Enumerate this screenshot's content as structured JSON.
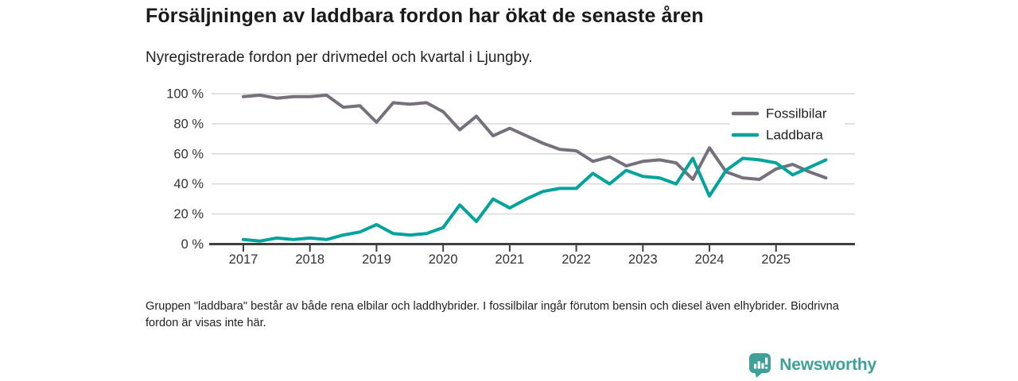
{
  "title": "Försäljningen av laddbara fordon har ökat de senaste åren",
  "subtitle": "Nyregistrerade fordon per drivmedel och kvartal i Ljungby.",
  "footnote": "Gruppen \"laddbara\" består av både rena elbilar och laddhybrider. I fossilbilar ingår förutom bensin och diesel även elhybrider. Biodrivna fordon är visas inte här.",
  "logo": {
    "text": "Newsworthy",
    "color": "#3fa09a"
  },
  "colors": {
    "fossil_line": "#75707b",
    "laddbara_line": "#00a39b",
    "gridline": "#dbdbdb",
    "axis": "#3e3e3e",
    "tick_text": "#333333",
    "legend_text": "#1f1f1f"
  },
  "chart_data": {
    "type": "line",
    "title": "Försäljningen av laddbara fordon har ökat de senaste åren",
    "subtitle": "Nyregistrerade fordon per drivmedel och kvartal i Ljungby.",
    "x_unit": "quarter",
    "x": [
      "2017 Q1",
      "2017 Q2",
      "2017 Q3",
      "2017 Q4",
      "2018 Q1",
      "2018 Q2",
      "2018 Q3",
      "2018 Q4",
      "2019 Q1",
      "2019 Q2",
      "2019 Q3",
      "2019 Q4",
      "2020 Q1",
      "2020 Q2",
      "2020 Q3",
      "2020 Q4",
      "2021 Q1",
      "2021 Q2",
      "2021 Q3",
      "2021 Q4",
      "2022 Q1",
      "2022 Q2",
      "2022 Q3",
      "2022 Q4",
      "2023 Q1",
      "2023 Q2",
      "2023 Q3",
      "2023 Q4",
      "2024 Q1",
      "2024 Q2",
      "2024 Q3",
      "2024 Q4",
      "2025 Q1",
      "2025 Q2",
      "2025 Q3",
      "2025 Q4"
    ],
    "x_tick_labels": [
      "2017",
      "2018",
      "2019",
      "2020",
      "2021",
      "2022",
      "2023",
      "2024",
      "2025"
    ],
    "y_tick_labels": [
      "0 %",
      "20 %",
      "40 %",
      "60 %",
      "80 %",
      "100 %"
    ],
    "ylim": [
      0,
      100
    ],
    "y_unit": "%",
    "grid": "horizontal",
    "legend_position": "top-right",
    "series": [
      {
        "name": "Fossilbilar",
        "color": "#75707b",
        "values": [
          98,
          99,
          97,
          98,
          98,
          99,
          91,
          92,
          81,
          94,
          93,
          94,
          88,
          76,
          85,
          72,
          77,
          72,
          67,
          63,
          62,
          55,
          58,
          52,
          55,
          56,
          54,
          43,
          64,
          48,
          44,
          43,
          50,
          53,
          48,
          44
        ]
      },
      {
        "name": "Laddbara",
        "color": "#00a39b",
        "values": [
          3,
          2,
          4,
          3,
          4,
          3,
          6,
          8,
          13,
          7,
          6,
          7,
          11,
          26,
          15,
          30,
          24,
          30,
          35,
          37,
          37,
          47,
          40,
          49,
          45,
          44,
          40,
          57,
          32,
          49,
          57,
          56,
          54,
          46,
          51,
          56
        ]
      }
    ]
  }
}
